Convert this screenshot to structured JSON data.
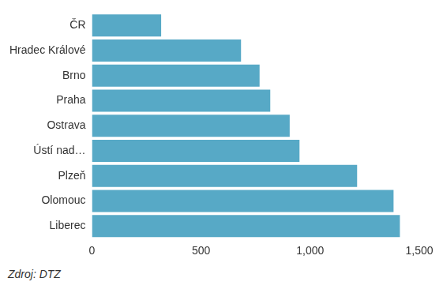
{
  "chart_data": {
    "type": "bar",
    "orientation": "horizontal",
    "categories": [
      "ČR",
      "Hradec Králové",
      "Brno",
      "Praha",
      "Ostrava",
      "Ústí nad…",
      "Plzeň",
      "Olomouc",
      "Liberec"
    ],
    "values": [
      317,
      683,
      768,
      817,
      906,
      951,
      1215,
      1382,
      1411
    ],
    "color": "#57a9c6",
    "xlim": [
      0,
      1500
    ],
    "xticks": [
      0,
      500,
      {
        "value": 1000,
        "label": "1,000"
      },
      {
        "value": 1500,
        "label": "1,500"
      }
    ],
    "grid": false,
    "source": "Zdroj: DTZ"
  }
}
